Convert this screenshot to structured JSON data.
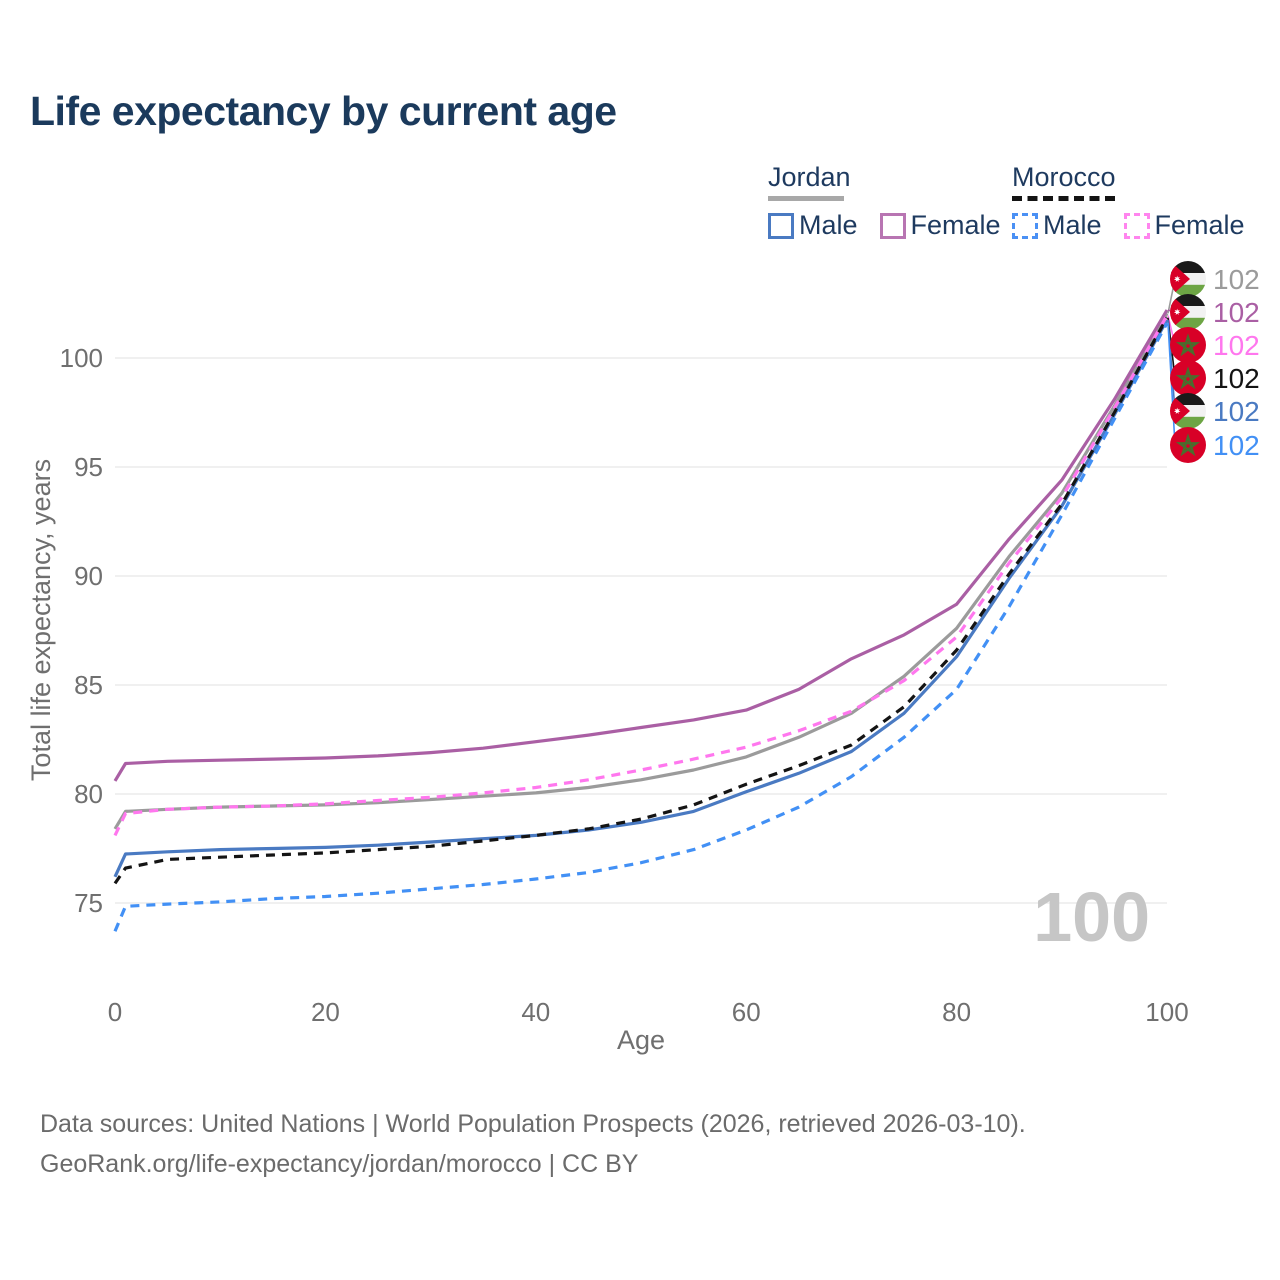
{
  "title": "Life expectancy by current age",
  "legend": {
    "jordan": {
      "name": "Jordan",
      "male_label": "Male",
      "female_label": "Female",
      "male_color": "#4a7ac2",
      "female_color": "#b875b2",
      "line_color": "#a8a8a8",
      "line_style": "solid"
    },
    "morocco": {
      "name": "Morocco",
      "male_label": "Male",
      "female_label": "Female",
      "male_color": "#4a90f4",
      "female_color": "#ff85ee",
      "line_color": "#141414",
      "line_style": "dashed"
    }
  },
  "watermark": "100",
  "footer": {
    "line1": "Data sources: United Nations | World Population Prospects (2026, retrieved 2026-03-10).",
    "line2": "GeoRank.org/life-expectancy/jordan/morocco | CC BY"
  },
  "chart_data": {
    "type": "line",
    "title": "Life expectancy by current age",
    "xlabel": "Age",
    "ylabel": "Total life expectancy, years",
    "xticks": [
      0,
      20,
      40,
      60,
      80,
      100
    ],
    "yticks": [
      75,
      80,
      85,
      90,
      95,
      100
    ],
    "xlim": [
      0,
      100
    ],
    "ylim": [
      73,
      103
    ],
    "grid": true,
    "legend_position": "top-right",
    "x": [
      0,
      1,
      5,
      10,
      15,
      20,
      25,
      30,
      35,
      40,
      45,
      50,
      55,
      60,
      65,
      70,
      75,
      80,
      85,
      90,
      95,
      100
    ],
    "series": [
      {
        "name": "Jordan — Both sexes",
        "country": "jordan",
        "color": "#9b9b9b",
        "dashed": false,
        "end_label": "102",
        "values": [
          78.4,
          79.2,
          79.3,
          79.4,
          79.45,
          79.5,
          79.6,
          79.75,
          79.9,
          80.05,
          80.3,
          80.65,
          81.1,
          81.7,
          82.6,
          83.7,
          85.4,
          87.6,
          90.9,
          93.8,
          97.8,
          102.05
        ]
      },
      {
        "name": "Jordan — Female",
        "country": "jordan",
        "color": "#aa5fa4",
        "dashed": false,
        "end_label": "102",
        "values": [
          80.6,
          81.4,
          81.5,
          81.55,
          81.6,
          81.65,
          81.75,
          81.9,
          82.1,
          82.4,
          82.7,
          83.05,
          83.4,
          83.85,
          84.8,
          86.2,
          87.3,
          88.7,
          91.7,
          94.4,
          98.1,
          102.2
        ]
      },
      {
        "name": "Morocco — Female",
        "country": "morocco",
        "color": "#ff77ee",
        "dashed": true,
        "end_label": "102",
        "values": [
          78.1,
          79.1,
          79.3,
          79.4,
          79.45,
          79.55,
          79.7,
          79.85,
          80.05,
          80.3,
          80.65,
          81.1,
          81.6,
          82.15,
          82.9,
          83.8,
          85.2,
          87.2,
          90.6,
          93.6,
          97.7,
          101.95
        ]
      },
      {
        "name": "Morocco — Both sexes",
        "country": "morocco",
        "color": "#141414",
        "dashed": true,
        "end_label": "102",
        "values": [
          75.9,
          76.6,
          77.0,
          77.1,
          77.2,
          77.3,
          77.45,
          77.6,
          77.85,
          78.1,
          78.4,
          78.85,
          79.5,
          80.45,
          81.3,
          82.25,
          84.0,
          86.6,
          90.1,
          93.3,
          97.5,
          101.85
        ]
      },
      {
        "name": "Jordan — Male",
        "country": "jordan",
        "color": "#4a7ac2",
        "dashed": false,
        "end_label": "102",
        "values": [
          76.2,
          77.25,
          77.35,
          77.45,
          77.5,
          77.55,
          77.65,
          77.8,
          77.95,
          78.1,
          78.35,
          78.7,
          79.2,
          80.1,
          80.95,
          81.95,
          83.7,
          86.3,
          89.9,
          93.2,
          97.4,
          101.75
        ]
      },
      {
        "name": "Morocco — Male",
        "country": "morocco",
        "color": "#4290f5",
        "dashed": true,
        "end_label": "102",
        "values": [
          73.7,
          74.85,
          74.95,
          75.05,
          75.2,
          75.3,
          75.45,
          75.65,
          75.85,
          76.1,
          76.4,
          76.85,
          77.45,
          78.35,
          79.4,
          80.8,
          82.6,
          84.8,
          88.6,
          92.8,
          97.2,
          101.6
        ]
      }
    ]
  }
}
